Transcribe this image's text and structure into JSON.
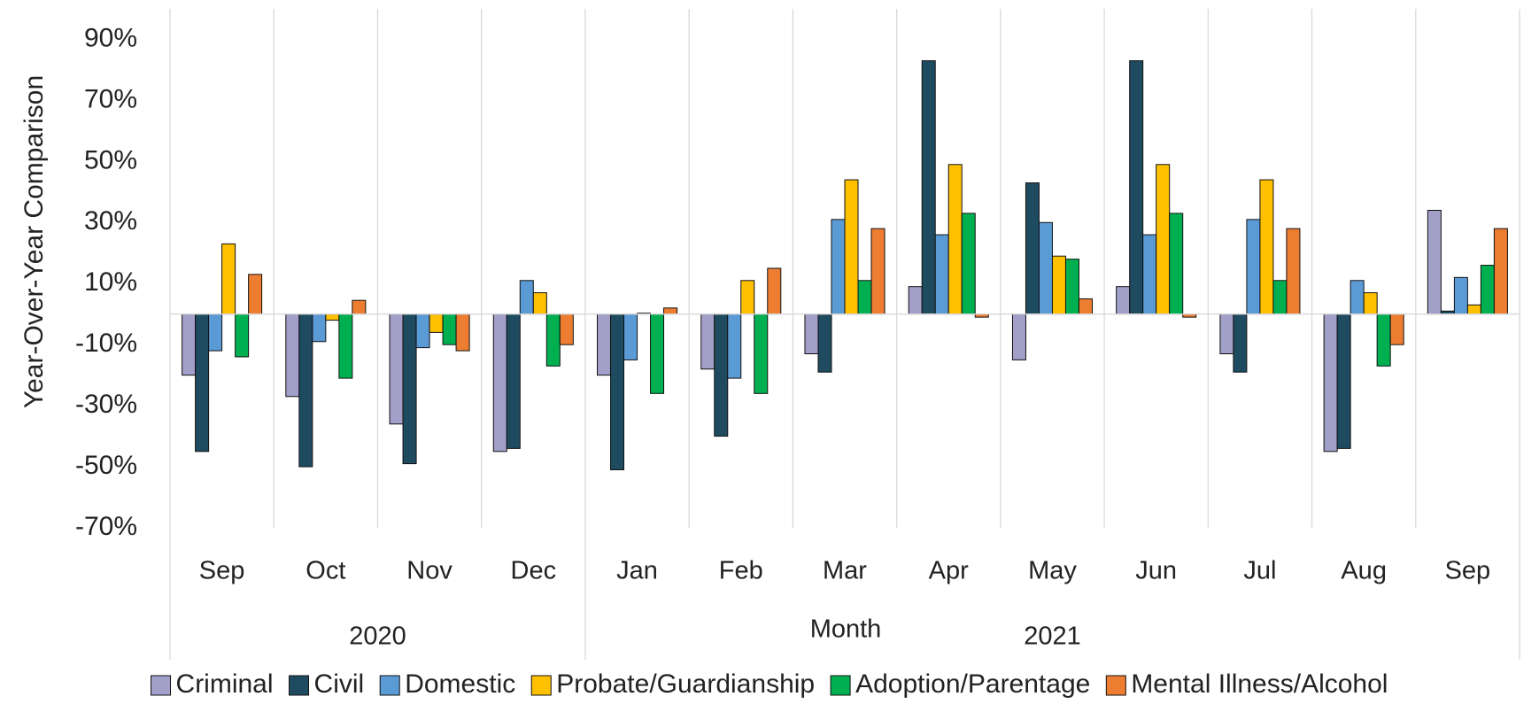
{
  "chart_data": {
    "type": "bar",
    "y_axis_title": "Year-Over-Year Comparison",
    "x_axis_title": "Month",
    "category_groups": [
      {
        "label": "2020",
        "categories": [
          "Sep",
          "Oct",
          "Nov",
          "Dec"
        ]
      },
      {
        "label": "2021",
        "categories": [
          "Jan",
          "Feb",
          "Mar",
          "Apr",
          "May",
          "Jun",
          "Jul",
          "Aug",
          "Sep"
        ]
      }
    ],
    "ylim": [
      -70,
      100
    ],
    "yticks": [
      {
        "value": -70,
        "label": "-70%"
      },
      {
        "value": -50,
        "label": "-50%"
      },
      {
        "value": -30,
        "label": "-30%"
      },
      {
        "value": -10,
        "label": "-10%"
      },
      {
        "value": 10,
        "label": "10%"
      },
      {
        "value": 30,
        "label": "30%"
      },
      {
        "value": 50,
        "label": "50%"
      },
      {
        "value": 70,
        "label": "70%"
      },
      {
        "value": 90,
        "label": "90%"
      }
    ],
    "legend": "bottom",
    "series": [
      {
        "name": "Criminal",
        "color": "#a29fc9",
        "values": [
          -20,
          -27,
          -36,
          -45,
          -20,
          -18,
          -13,
          9,
          -15,
          9,
          -13,
          -45,
          34
        ]
      },
      {
        "name": "Civil",
        "color": "#1f4b61",
        "values": [
          -45,
          -50,
          -49,
          -44,
          -51,
          -40,
          -19,
          83,
          43,
          83,
          -19,
          -44,
          1
        ]
      },
      {
        "name": "Domestic",
        "color": "#5b9bd5",
        "values": [
          -12,
          -9,
          -11,
          11,
          -15,
          -21,
          31,
          26,
          30,
          26,
          31,
          11,
          12
        ]
      },
      {
        "name": "Probate/Guardianship",
        "color": "#ffc000",
        "values": [
          23,
          -2,
          -6,
          7,
          0.3,
          11,
          44,
          49,
          19,
          49,
          44,
          7,
          3
        ]
      },
      {
        "name": "Adoption/Parentage",
        "color": "#00b050",
        "values": [
          -14,
          -21,
          -10,
          -17,
          -26,
          -26,
          11,
          33,
          18,
          33,
          11,
          -17,
          16
        ]
      },
      {
        "name": "Mental Illness/Alcohol",
        "color": "#ed7d31",
        "values": [
          13,
          4.5,
          -12,
          -10,
          2,
          15,
          28,
          -1,
          5,
          -1,
          28,
          -10,
          28
        ]
      }
    ]
  }
}
